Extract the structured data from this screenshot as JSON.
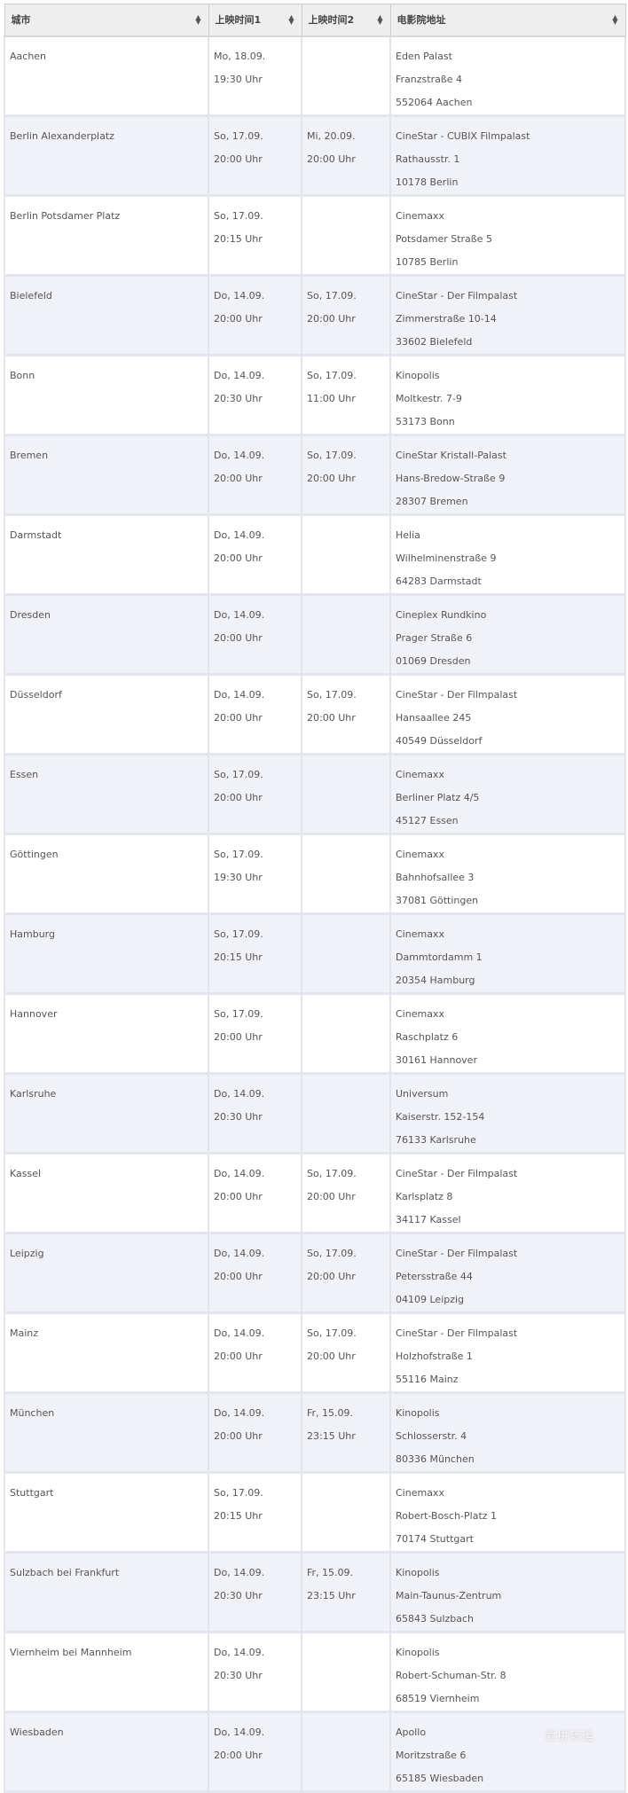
{
  "table": {
    "headers": [
      {
        "label": "城市"
      },
      {
        "label": "上映时间1"
      },
      {
        "label": "上映时间2"
      },
      {
        "label": "电影院地址"
      }
    ],
    "rows": [
      {
        "city": "Aachen",
        "t1": [
          "Mo, 18.09.",
          "19:30 Uhr"
        ],
        "t2": [
          "",
          ""
        ],
        "addr": [
          "Eden Palast",
          "Franzstraße 4",
          "552064 Aachen"
        ]
      },
      {
        "city": "Berlin Alexanderplatz",
        "t1": [
          "So, 17.09.",
          "20:00 Uhr"
        ],
        "t2": [
          "Mi, 20.09.",
          "20:00 Uhr"
        ],
        "addr": [
          "CineStar - CUBIX Filmpalast",
          "Rathausstr. 1",
          "10178 Berlin"
        ]
      },
      {
        "city": "Berlin Potsdamer Platz",
        "t1": [
          "So, 17.09.",
          "20:15 Uhr"
        ],
        "t2": [
          "",
          ""
        ],
        "addr": [
          "Cinemaxx",
          "Potsdamer Straße 5",
          "10785 Berlin"
        ]
      },
      {
        "city": "Bielefeld",
        "t1": [
          "Do, 14.09.",
          "20:00 Uhr"
        ],
        "t2": [
          "So, 17.09.",
          "20:00 Uhr"
        ],
        "addr": [
          "CineStar - Der Filmpalast",
          "Zimmerstraße 10-14",
          "33602 Bielefeld"
        ]
      },
      {
        "city": "Bonn",
        "t1": [
          "Do, 14.09.",
          "20:30 Uhr"
        ],
        "t2": [
          "So, 17.09.",
          "11:00 Uhr"
        ],
        "addr": [
          "Kinopolis",
          "Moltkestr. 7-9",
          "53173 Bonn"
        ]
      },
      {
        "city": "Bremen",
        "t1": [
          "Do, 14.09.",
          "20:00 Uhr"
        ],
        "t2": [
          "So, 17.09.",
          "20:00 Uhr"
        ],
        "addr": [
          "CineStar Kristall-Palast",
          "Hans-Bredow-Straße 9",
          "28307 Bremen"
        ]
      },
      {
        "city": "Darmstadt",
        "t1": [
          "Do, 14.09.",
          "20:00 Uhr"
        ],
        "t2": [
          "",
          ""
        ],
        "addr": [
          "Helia",
          "Wilhelminenstraße 9",
          "64283 Darmstadt"
        ]
      },
      {
        "city": "Dresden",
        "t1": [
          "Do, 14.09.",
          "20:00 Uhr"
        ],
        "t2": [
          "",
          ""
        ],
        "addr": [
          "Cineplex Rundkino",
          "Prager Straße 6",
          "01069 Dresden"
        ]
      },
      {
        "city": "Düsseldorf",
        "t1": [
          "Do, 14.09.",
          "20:00 Uhr"
        ],
        "t2": [
          "So, 17.09.",
          "20:00 Uhr"
        ],
        "addr": [
          "CineStar - Der Filmpalast",
          "Hansaallee 245",
          "40549 Düsseldorf"
        ]
      },
      {
        "city": "Essen",
        "t1": [
          "So, 17.09.",
          "20:00 Uhr"
        ],
        "t2": [
          "",
          ""
        ],
        "addr": [
          "Cinemaxx",
          "Berliner Platz 4/5",
          "45127 Essen"
        ]
      },
      {
        "city": "Göttingen",
        "t1": [
          "So, 17.09.",
          "19:30 Uhr"
        ],
        "t2": [
          "",
          ""
        ],
        "addr": [
          "Cinemaxx",
          "Bahnhofsallee 3",
          "37081 Göttingen"
        ]
      },
      {
        "city": "Hamburg",
        "t1": [
          "So, 17.09.",
          "20:15 Uhr"
        ],
        "t2": [
          "",
          ""
        ],
        "addr": [
          "Cinemaxx",
          "Dammtordamm 1",
          "20354 Hamburg"
        ]
      },
      {
        "city": "Hannover",
        "t1": [
          "So, 17.09.",
          "20:00 Uhr"
        ],
        "t2": [
          "",
          ""
        ],
        "addr": [
          "Cinemaxx",
          "Raschplatz 6",
          "30161 Hannover"
        ]
      },
      {
        "city": "Karlsruhe",
        "t1": [
          "Do, 14.09.",
          "20:30 Uhr"
        ],
        "t2": [
          "",
          ""
        ],
        "addr": [
          "Universum",
          "Kaiserstr. 152-154",
          "76133 Karlsruhe"
        ]
      },
      {
        "city": "Kassel",
        "t1": [
          "Do, 14.09.",
          "20:00 Uhr"
        ],
        "t2": [
          "So, 17.09.",
          "20:00 Uhr"
        ],
        "addr": [
          "CineStar - Der Filmpalast",
          "Karlsplatz 8",
          "34117 Kassel"
        ]
      },
      {
        "city": "Leipzig",
        "t1": [
          "Do, 14.09.",
          "20:00 Uhr"
        ],
        "t2": [
          "So, 17.09.",
          "20:00 Uhr"
        ],
        "addr": [
          "CineStar - Der Filmpalast",
          "Petersstraße 44",
          "04109 Leipzig"
        ]
      },
      {
        "city": "Mainz",
        "t1": [
          "Do, 14.09.",
          "20:00 Uhr"
        ],
        "t2": [
          "So, 17.09.",
          "20:00 Uhr"
        ],
        "addr": [
          "CineStar - Der Filmpalast",
          "Holzhofstraße 1",
          "55116 Mainz"
        ]
      },
      {
        "city": "München",
        "t1": [
          "Do, 14.09.",
          "20:00 Uhr"
        ],
        "t2": [
          "Fr, 15.09.",
          "23:15 Uhr"
        ],
        "addr": [
          "Kinopolis",
          "Schlosserstr. 4",
          "80336 München"
        ]
      },
      {
        "city": "Stuttgart",
        "t1": [
          "So, 17.09.",
          "20:15 Uhr"
        ],
        "t2": [
          "",
          ""
        ],
        "addr": [
          "Cinemaxx",
          "Robert-Bosch-Platz 1",
          "70174 Stuttgart"
        ]
      },
      {
        "city": "Sulzbach bei Frankfurt",
        "t1": [
          "Do, 14.09.",
          "20:30 Uhr"
        ],
        "t2": [
          "Fr, 15.09.",
          "23:15 Uhr"
        ],
        "addr": [
          "Kinopolis",
          "Main-Taunus-Zentrum",
          "65843 Sulzbach"
        ]
      },
      {
        "city": "Viernheim bei Mannheim",
        "t1": [
          "Do, 14.09.",
          "20:30 Uhr"
        ],
        "t2": [
          "",
          ""
        ],
        "addr": [
          "Kinopolis",
          "Robert-Schuman-Str. 8",
          "68519 Viernheim"
        ]
      },
      {
        "city": "Wiesbaden",
        "t1": [
          "Do, 14.09.",
          "20:00 Uhr"
        ],
        "t2": [
          "",
          ""
        ],
        "addr": [
          "Apollo",
          "Moritzstraße 6",
          "65185 Wiesbaden"
        ]
      }
    ]
  },
  "watermark": "爱拼转运",
  "icons": {
    "sort": "sort-icon"
  },
  "colors": {
    "header_bg": "#eeeeee",
    "row_alt_bg": "#f1f2f8",
    "row_bg": "#ffffff",
    "text": "#555555",
    "border": "#e3e4ea"
  }
}
